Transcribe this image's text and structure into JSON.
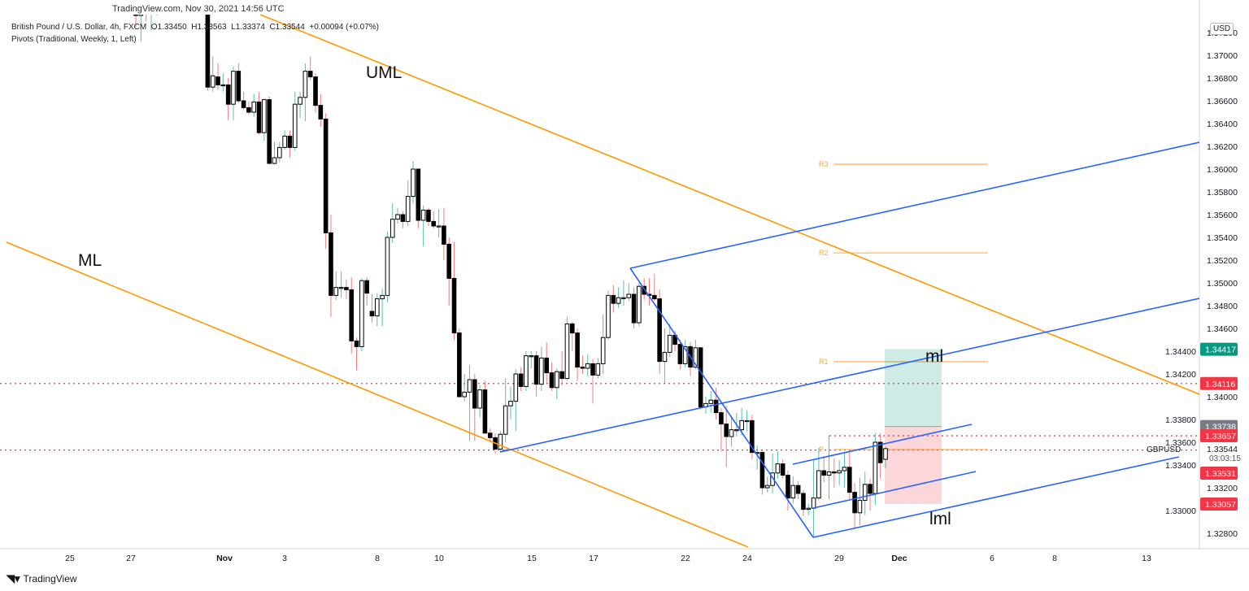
{
  "header": {
    "watermark": "TradingView.com, Nov 30, 2021 14:56 UTC",
    "symbol_line": "British Pound / U.S. Dollar, 4h, FXCM",
    "ohlc": {
      "open": "O1.33450",
      "high": "H1.33563",
      "low": "L1.33374",
      "close": "C1.33544",
      "change": "+0.00094 (+0.07%)"
    },
    "indicator": "Pivots (Traditional, Weekly, 1, Left)"
  },
  "footer": {
    "brand": "TradingView"
  },
  "currency_badge": "USD",
  "colors": {
    "up_wick": "#26a69a",
    "down_wick": "#ef5350",
    "orange": "#ff9800",
    "blue": "#2962ff",
    "red_label": "#f23645",
    "green_label": "#089981",
    "gray_label": "#787b86"
  },
  "chart_data": {
    "type": "candlestick",
    "symbol": "GBPUSD",
    "timeframe": "4h",
    "ylim": [
      1.327,
      1.374
    ],
    "y_ticks": [
      "1.37200",
      "1.37000",
      "1.36800",
      "1.36600",
      "1.36400",
      "1.36200",
      "1.36000",
      "1.35800",
      "1.35600",
      "1.35400",
      "1.35200",
      "1.35000",
      "1.34800",
      "1.34600",
      "1.34400",
      "1.34200",
      "1.34000",
      "1.33800",
      "1.33600",
      "1.33400",
      "1.33200",
      "1.33000",
      "1.32800"
    ],
    "x_ticks": [
      "25",
      "27",
      "Nov",
      "3",
      "8",
      "10",
      "15",
      "17",
      "22",
      "24",
      "29",
      "Dec",
      "6",
      "8",
      "13"
    ],
    "candles_ohlc": [
      [
        1.376,
        1.377,
        1.3725,
        1.3735
      ],
      [
        1.3735,
        1.376,
        1.3712,
        1.3748
      ],
      [
        1.3748,
        1.3752,
        1.373,
        1.3738
      ],
      [
        1.3738,
        1.3745,
        1.3722,
        1.3742
      ],
      [
        1.3742,
        1.3755,
        1.3735,
        1.375
      ],
      [
        1.375,
        1.3762,
        1.374,
        1.3744
      ],
      [
        1.3744,
        1.377,
        1.374,
        1.3765
      ],
      [
        1.3765,
        1.379,
        1.3755,
        1.3782
      ],
      [
        1.3782,
        1.3795,
        1.377,
        1.3776
      ],
      [
        1.3776,
        1.38,
        1.377,
        1.3795
      ],
      [
        1.3795,
        1.3805,
        1.378,
        1.3788
      ],
      [
        1.3788,
        1.3798,
        1.377,
        1.3775
      ],
      [
        1.3775,
        1.3785,
        1.3755,
        1.3762
      ],
      [
        1.3762,
        1.377,
        1.3745,
        1.376
      ],
      [
        1.376,
        1.3765,
        1.3669,
        1.3672
      ],
      [
        1.3672,
        1.3699,
        1.3668,
        1.3682
      ],
      [
        1.3681,
        1.3693,
        1.367,
        1.3674
      ],
      [
        1.3674,
        1.3684,
        1.3668,
        1.3674
      ],
      [
        1.3674,
        1.368,
        1.3643,
        1.3657
      ],
      [
        1.3657,
        1.369,
        1.3643,
        1.3686
      ],
      [
        1.3686,
        1.3693,
        1.3658,
        1.366
      ],
      [
        1.366,
        1.3668,
        1.3652,
        1.3654
      ],
      [
        1.3654,
        1.3659,
        1.3648,
        1.365
      ],
      [
        1.365,
        1.3666,
        1.3646,
        1.3659
      ],
      [
        1.3659,
        1.3668,
        1.363,
        1.3632
      ],
      [
        1.3632,
        1.3662,
        1.3625,
        1.3661
      ],
      [
        1.3661,
        1.3664,
        1.3604,
        1.3605
      ],
      [
        1.3605,
        1.3624,
        1.3604,
        1.361
      ],
      [
        1.361,
        1.3624,
        1.3606,
        1.3619
      ],
      [
        1.3619,
        1.3634,
        1.3617,
        1.3629
      ],
      [
        1.3629,
        1.3634,
        1.361,
        1.3619
      ],
      [
        1.3619,
        1.3668,
        1.3616,
        1.3657
      ],
      [
        1.3657,
        1.3668,
        1.3645,
        1.3663
      ],
      [
        1.3663,
        1.3693,
        1.3642,
        1.3686
      ],
      [
        1.3686,
        1.3699,
        1.3678,
        1.3681
      ],
      [
        1.3681,
        1.3684,
        1.365,
        1.3656
      ],
      [
        1.3656,
        1.3666,
        1.3637,
        1.3644
      ],
      [
        1.3644,
        1.3649,
        1.353,
        1.3544
      ],
      [
        1.3544,
        1.356,
        1.347,
        1.3489
      ],
      [
        1.3489,
        1.351,
        1.3485,
        1.3496
      ],
      [
        1.3496,
        1.351,
        1.3487,
        1.3496
      ],
      [
        1.3496,
        1.3503,
        1.3486,
        1.3494
      ],
      [
        1.3494,
        1.3505,
        1.3438,
        1.3449
      ],
      [
        1.3449,
        1.3452,
        1.3423,
        1.3444
      ],
      [
        1.3444,
        1.3504,
        1.344,
        1.3502
      ],
      [
        1.3502,
        1.3505,
        1.348,
        1.3491
      ],
      [
        1.3475,
        1.349,
        1.3465,
        1.3471
      ],
      [
        1.3471,
        1.3491,
        1.3462,
        1.3486
      ],
      [
        1.3486,
        1.3495,
        1.3462,
        1.3489
      ],
      [
        1.3489,
        1.3545,
        1.3483,
        1.354
      ],
      [
        1.354,
        1.357,
        1.3535,
        1.3556
      ],
      [
        1.3556,
        1.3566,
        1.3552,
        1.356
      ],
      [
        1.356,
        1.3563,
        1.3548,
        1.3554
      ],
      [
        1.3554,
        1.359,
        1.355,
        1.3576
      ],
      [
        1.3576,
        1.3607,
        1.357,
        1.36
      ],
      [
        1.36,
        1.36,
        1.3548,
        1.3555
      ],
      [
        1.3555,
        1.3568,
        1.3532,
        1.3564
      ],
      [
        1.3564,
        1.3566,
        1.355,
        1.3554
      ],
      [
        1.3554,
        1.3563,
        1.3548,
        1.355
      ],
      [
        1.355,
        1.3565,
        1.354,
        1.355
      ],
      [
        1.355,
        1.3566,
        1.352,
        1.3534
      ],
      [
        1.3534,
        1.354,
        1.348,
        1.3504
      ],
      [
        1.3504,
        1.3536,
        1.345,
        1.3456
      ],
      [
        1.3456,
        1.346,
        1.34,
        1.34
      ],
      [
        1.34,
        1.342,
        1.3396,
        1.3404
      ],
      [
        1.3404,
        1.3428,
        1.3361,
        1.3415
      ],
      [
        1.3415,
        1.342,
        1.3361,
        1.339
      ],
      [
        1.339,
        1.341,
        1.3382,
        1.3406
      ],
      [
        1.3406,
        1.3414,
        1.3368,
        1.3368
      ],
      [
        1.3368,
        1.3372,
        1.336,
        1.3364
      ],
      [
        1.3364,
        1.3368,
        1.335,
        1.3354
      ],
      [
        1.3354,
        1.337,
        1.3352,
        1.3367
      ],
      [
        1.3367,
        1.3416,
        1.336,
        1.3392
      ],
      [
        1.3392,
        1.3409,
        1.338,
        1.3396
      ],
      [
        1.3396,
        1.3424,
        1.337,
        1.342
      ],
      [
        1.342,
        1.3426,
        1.3405,
        1.3409
      ],
      [
        1.3409,
        1.344,
        1.3405,
        1.3436
      ],
      [
        1.3436,
        1.344,
        1.3425,
        1.3436
      ],
      [
        1.3436,
        1.344,
        1.34,
        1.3411
      ],
      [
        1.3411,
        1.3444,
        1.3405,
        1.3434
      ],
      [
        1.3434,
        1.3448,
        1.3412,
        1.3421
      ],
      [
        1.3421,
        1.343,
        1.3405,
        1.3408
      ],
      [
        1.3408,
        1.3425,
        1.3398,
        1.3422
      ],
      [
        1.3422,
        1.344,
        1.341,
        1.3416
      ],
      [
        1.3416,
        1.347,
        1.3414,
        1.3464
      ],
      [
        1.3464,
        1.3466,
        1.344,
        1.3456
      ],
      [
        1.3456,
        1.346,
        1.3414,
        1.3426
      ],
      [
        1.3426,
        1.3436,
        1.342,
        1.3425
      ],
      [
        1.3425,
        1.3437,
        1.3418,
        1.3429
      ],
      [
        1.3429,
        1.3433,
        1.3394,
        1.3419
      ],
      [
        1.3419,
        1.3434,
        1.3416,
        1.3429
      ],
      [
        1.3429,
        1.3472,
        1.342,
        1.3452
      ],
      [
        1.3452,
        1.3493,
        1.345,
        1.3489
      ],
      [
        1.3489,
        1.3498,
        1.3474,
        1.3482
      ],
      [
        1.3482,
        1.3496,
        1.3478,
        1.3487
      ],
      [
        1.3487,
        1.3502,
        1.348,
        1.3487
      ],
      [
        1.3487,
        1.35,
        1.3484,
        1.349
      ],
      [
        1.349,
        1.3496,
        1.346,
        1.3465
      ],
      [
        1.3465,
        1.35,
        1.3462,
        1.3497
      ],
      [
        1.3497,
        1.3504,
        1.3485,
        1.349
      ],
      [
        1.349,
        1.3504,
        1.348,
        1.3489
      ],
      [
        1.3489,
        1.3508,
        1.3484,
        1.3486
      ],
      [
        1.3486,
        1.3494,
        1.342,
        1.3431
      ],
      [
        1.3431,
        1.346,
        1.3411,
        1.3439
      ],
      [
        1.3439,
        1.3464,
        1.3435,
        1.3454
      ],
      [
        1.3454,
        1.3458,
        1.344,
        1.3446
      ],
      [
        1.3446,
        1.345,
        1.3424,
        1.3429
      ],
      [
        1.3429,
        1.345,
        1.3426,
        1.3444
      ],
      [
        1.3444,
        1.3448,
        1.3418,
        1.3426
      ],
      [
        1.3426,
        1.345,
        1.3424,
        1.3443
      ],
      [
        1.3443,
        1.3443,
        1.3389,
        1.3391
      ],
      [
        1.3391,
        1.34,
        1.3385,
        1.3394
      ],
      [
        1.3394,
        1.3405,
        1.3386,
        1.3397
      ],
      [
        1.3397,
        1.3408,
        1.338,
        1.3386
      ],
      [
        1.3386,
        1.339,
        1.3352,
        1.3376
      ],
      [
        1.3376,
        1.3392,
        1.3338,
        1.3365
      ],
      [
        1.3365,
        1.3382,
        1.3356,
        1.3371
      ],
      [
        1.3371,
        1.3386,
        1.3365,
        1.3371
      ],
      [
        1.3371,
        1.339,
        1.3366,
        1.3379
      ],
      [
        1.3379,
        1.3388,
        1.337,
        1.3379
      ],
      [
        1.3379,
        1.3384,
        1.3345,
        1.3351
      ],
      [
        1.3351,
        1.3357,
        1.3336,
        1.3351
      ],
      [
        1.3351,
        1.3353,
        1.3314,
        1.332
      ],
      [
        1.332,
        1.333,
        1.3316,
        1.3322
      ],
      [
        1.3322,
        1.335,
        1.3315,
        1.3333
      ],
      [
        1.3333,
        1.3352,
        1.3328,
        1.3341
      ],
      [
        1.3341,
        1.3345,
        1.3328,
        1.3331
      ],
      [
        1.3331,
        1.3335,
        1.33,
        1.3311
      ],
      [
        1.3311,
        1.333,
        1.3306,
        1.3322
      ],
      [
        1.3322,
        1.3326,
        1.331,
        1.3315
      ],
      [
        1.3315,
        1.3318,
        1.3295,
        1.3301
      ],
      [
        1.3301,
        1.3306,
        1.3296,
        1.3302
      ],
      [
        1.3302,
        1.3345,
        1.3276,
        1.3311
      ],
      [
        1.3311,
        1.3355,
        1.3309,
        1.3335
      ],
      [
        1.3335,
        1.3348,
        1.3325,
        1.3331
      ],
      [
        1.3331,
        1.3366,
        1.331,
        1.3334
      ],
      [
        1.3334,
        1.3346,
        1.332,
        1.3333
      ],
      [
        1.3333,
        1.3344,
        1.3322,
        1.3335
      ],
      [
        1.3335,
        1.335,
        1.332,
        1.3338
      ],
      [
        1.3338,
        1.3352,
        1.331,
        1.3316
      ],
      [
        1.3316,
        1.3324,
        1.3285,
        1.3298
      ],
      [
        1.3298,
        1.3329,
        1.3287,
        1.3309
      ],
      [
        1.3309,
        1.3334,
        1.3296,
        1.3323
      ],
      [
        1.3323,
        1.3328,
        1.33,
        1.3315
      ],
      [
        1.3315,
        1.3368,
        1.3305,
        1.336
      ],
      [
        1.336,
        1.3368,
        1.3328,
        1.3342
      ],
      [
        1.3345,
        1.33563,
        1.33374,
        1.33544
      ]
    ],
    "pivots": [
      {
        "label": "R3",
        "value": 1.36043
      },
      {
        "label": "R2",
        "value": 1.35264
      },
      {
        "label": "R1",
        "value": 1.34307
      },
      {
        "label": "P",
        "value": 1.33536
      }
    ],
    "horizontal_dotted_lines": [
      1.34116,
      1.33657,
      1.33531
    ],
    "price_labels": [
      {
        "text": "1.34417",
        "value": 1.34417,
        "color": "#089981"
      },
      {
        "text": "1.34116",
        "value": 1.34116,
        "color": "#f23645"
      },
      {
        "text": "1.33738",
        "value": 1.33738,
        "color": "#787b86"
      },
      {
        "text": "1.33657",
        "value": 1.33657,
        "color": "#f23645"
      },
      {
        "text": "1.33531",
        "value": 1.33531,
        "color": "#f23645"
      },
      {
        "text": "1.33057",
        "value": 1.33057,
        "color": "#f23645"
      }
    ],
    "last_price": {
      "symbol": "GBPUSD",
      "price": "1.33544",
      "countdown": "03:03:15"
    },
    "position": {
      "target": 1.34417,
      "entry": 1.33738,
      "stop": 1.33057
    },
    "drawing_labels": {
      "uml": "UML",
      "ml": "ML",
      "ml_inner": "ml",
      "lml": "lml"
    }
  }
}
